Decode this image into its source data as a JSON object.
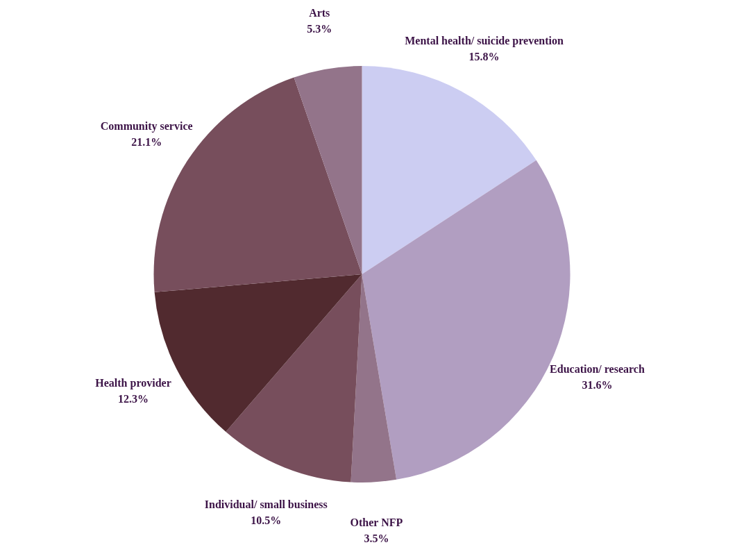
{
  "chart_data": {
    "type": "pie",
    "categories": [
      "Mental health/ suicide prevention",
      "Education/ research",
      "Other NFP",
      "Individual/ small business",
      "Health provider",
      "Community service",
      "Arts"
    ],
    "values": [
      15.8,
      31.6,
      3.5,
      10.5,
      12.3,
      21.1,
      5.3
    ],
    "value_labels": [
      "15.8%",
      "31.6%",
      "3.5%",
      "10.5%",
      "12.3%",
      "21.1%",
      "5.3%"
    ],
    "colors": [
      "#cccdf2",
      "#b19ec1",
      "#93748a",
      "#774e5c",
      "#512a2f",
      "#774e5c",
      "#93748a"
    ]
  }
}
